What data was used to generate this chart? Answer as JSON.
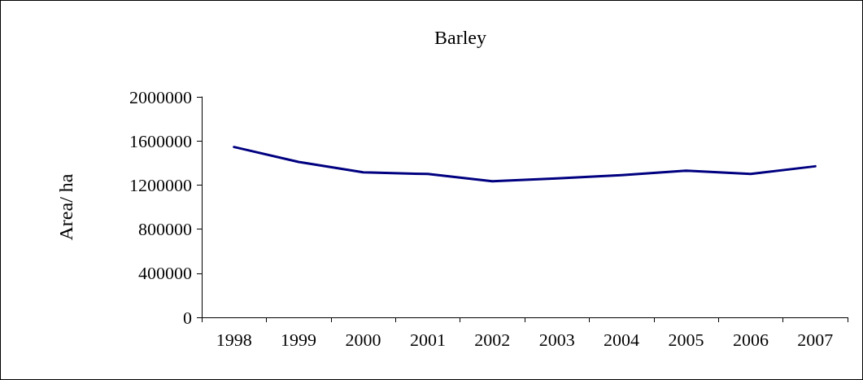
{
  "chart_data": {
    "type": "line",
    "title": "Barley",
    "ylabel": "Area/ ha",
    "categories": [
      "1998",
      "1999",
      "2000",
      "2001",
      "2002",
      "2003",
      "2004",
      "2005",
      "2006",
      "2007"
    ],
    "series": [
      {
        "color": "#000080",
        "values": [
          1545000,
          1410000,
          1315000,
          1300000,
          1235000,
          1260000,
          1290000,
          1330000,
          1300000,
          1370000
        ]
      }
    ],
    "ylim": [
      0,
      2000000
    ],
    "yticks": [
      0,
      400000,
      800000,
      1200000,
      1600000,
      2000000
    ],
    "grid": false,
    "marker": "none",
    "line_style": "solid"
  }
}
